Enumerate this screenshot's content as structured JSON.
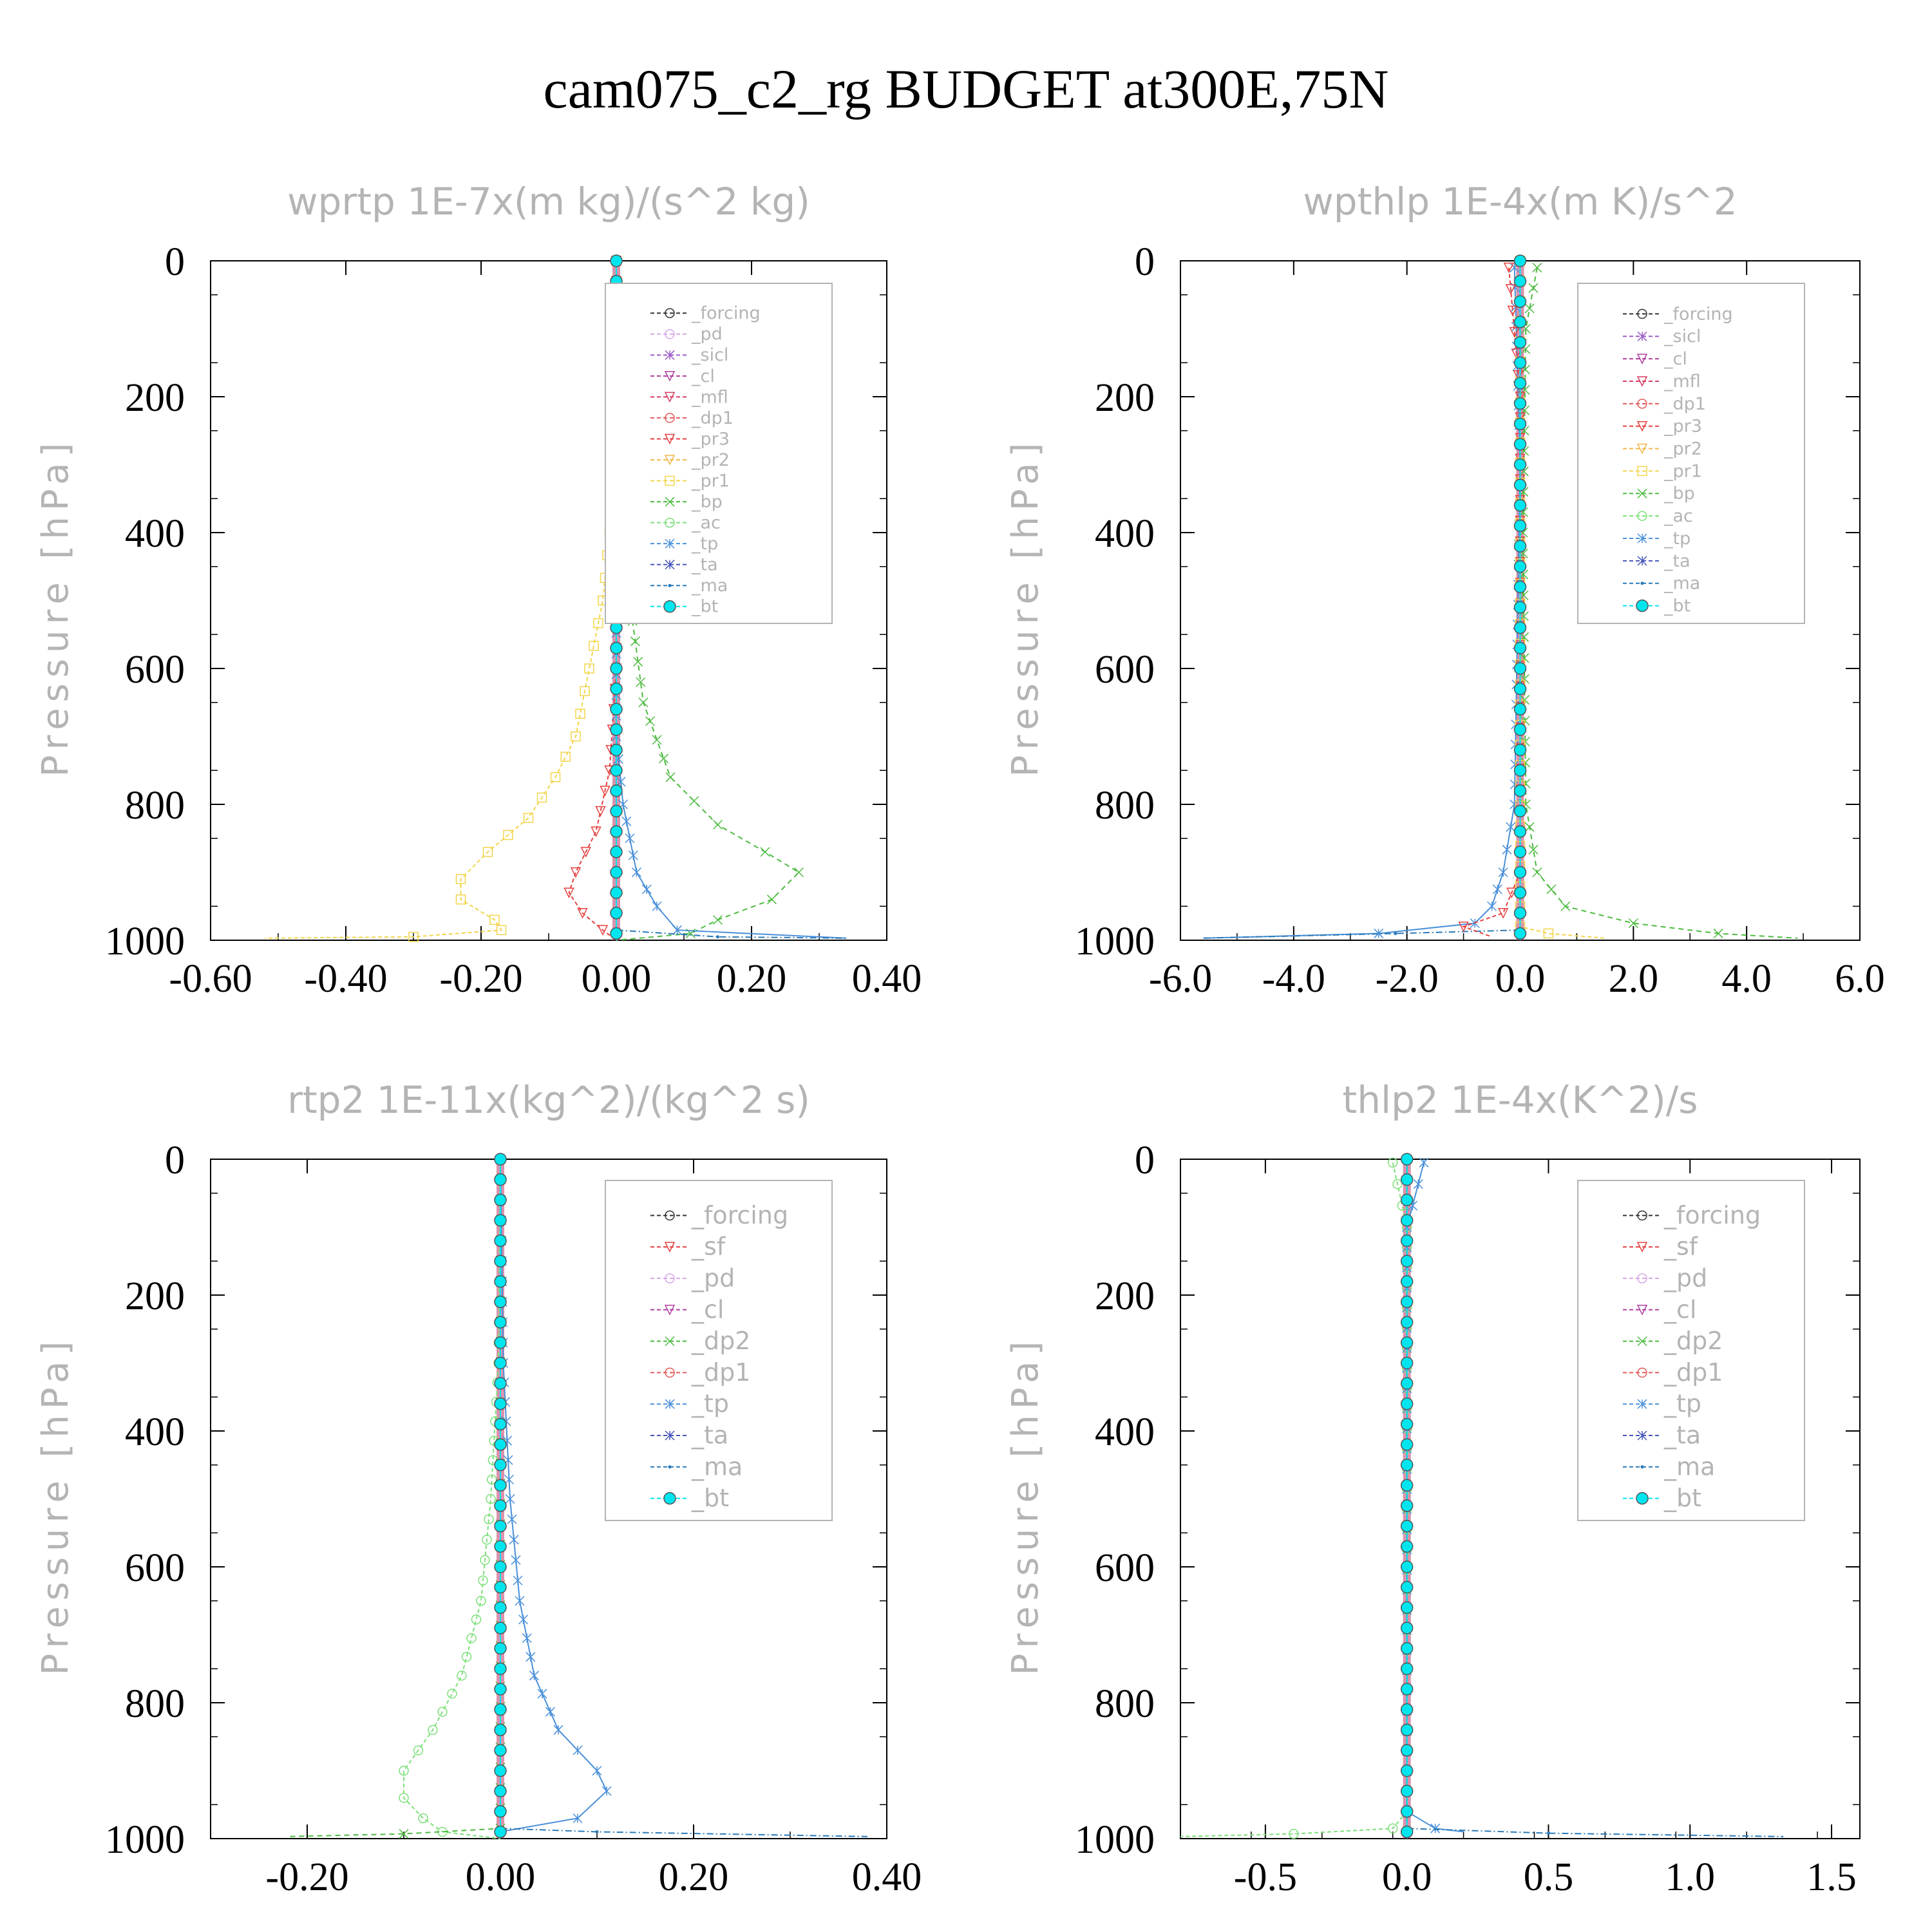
{
  "title": "cam075_c2_rg  BUDGET at300E,75N",
  "colors": {
    "forcing": "#333333",
    "pd": "#d8a8e8",
    "sicl": "#9b59c6",
    "cl": "#b03fa0",
    "mfl": "#d63d5e",
    "dp1": "#e35b5b",
    "pr3": "#e64040",
    "pr2": "#f2b84b",
    "pr1": "#f2d54b",
    "bp": "#4cbb3f",
    "ac": "#7de07a",
    "tp": "#4a90d9",
    "ta": "#4455bb",
    "ma": "#2a7ab8",
    "bt": "#00e5ee",
    "sf": "#e64040",
    "dp2": "#4cbb3f",
    "forcing_red": "#e35b5b"
  },
  "chart_data": [
    {
      "type": "line",
      "title": "wprtp  1E-7x(m kg)/(s^2 kg)",
      "ylabel": "Pressure [hPa]",
      "xlim": [
        -0.6,
        0.4
      ],
      "ylim": [
        1000,
        0
      ],
      "xticks": [
        "-0.60",
        "-0.40",
        "-0.20",
        "0.00",
        "0.20",
        "0.40"
      ],
      "xtick_values": [
        -0.6,
        -0.4,
        -0.2,
        0.0,
        0.2,
        0.4
      ],
      "yticks": [
        "0",
        "200",
        "400",
        "600",
        "800",
        "1000"
      ],
      "ytick_values": [
        0,
        200,
        400,
        600,
        800,
        1000
      ],
      "legend": [
        "_forcing",
        "_pd",
        "_sicl",
        "_cl",
        "_mfl",
        "_dp1",
        "_pr3",
        "_pr2",
        "_pr1",
        "_bp",
        "_ac",
        "_tp",
        "_ta",
        "_ma",
        "_bt"
      ],
      "series": [
        {
          "name": "_pr1",
          "color": "#f2d54b",
          "marker": "square",
          "dash": "6,4",
          "points": [
            [
              0,
              0
            ],
            [
              0,
              300
            ],
            [
              -0.01,
              400
            ],
            [
              -0.02,
              500
            ],
            [
              -0.04,
              600
            ],
            [
              -0.06,
              700
            ],
            [
              -0.09,
              760
            ],
            [
              -0.13,
              820
            ],
            [
              -0.19,
              870
            ],
            [
              -0.23,
              910
            ],
            [
              -0.23,
              940
            ],
            [
              -0.18,
              970
            ],
            [
              -0.17,
              985
            ],
            [
              -0.3,
              995
            ],
            [
              -0.52,
              997
            ]
          ]
        },
        {
          "name": "_pr3",
          "color": "#e64040",
          "marker": "tri-down",
          "dash": "6,4",
          "points": [
            [
              0,
              0
            ],
            [
              0,
              600
            ],
            [
              -0.01,
              750
            ],
            [
              -0.03,
              840
            ],
            [
              -0.06,
              900
            ],
            [
              -0.07,
              930
            ],
            [
              -0.05,
              960
            ],
            [
              -0.02,
              985
            ],
            [
              0,
              1000
            ]
          ]
        },
        {
          "name": "_bp",
          "color": "#4cbb3f",
          "marker": "x",
          "dash": "8,6",
          "points": [
            [
              0,
              0
            ],
            [
              0,
              250
            ],
            [
              0.01,
              350
            ],
            [
              0.02,
              500
            ],
            [
              0.04,
              650
            ],
            [
              0.08,
              760
            ],
            [
              0.15,
              830
            ],
            [
              0.22,
              870
            ],
            [
              0.27,
              900
            ],
            [
              0.23,
              940
            ],
            [
              0.15,
              970
            ],
            [
              0.11,
              990
            ],
            [
              0,
              1000
            ]
          ]
        },
        {
          "name": "_tp",
          "color": "#4a90d9",
          "marker": "asterisk",
          "dash": "",
          "points": [
            [
              0,
              0
            ],
            [
              0,
              700
            ],
            [
              0.01,
              800
            ],
            [
              0.02,
              850
            ],
            [
              0.03,
              900
            ],
            [
              0.06,
              950
            ],
            [
              0.09,
              985
            ],
            [
              0.34,
              997
            ]
          ]
        },
        {
          "name": "_ma",
          "color": "#2a7ab8",
          "marker": "dot",
          "dash": "10,4,2,4",
          "points": [
            [
              0,
              0
            ],
            [
              0,
              985
            ],
            [
              0.15,
              995
            ],
            [
              0.34,
              997
            ]
          ]
        },
        {
          "name": "_bt",
          "color": "#00e5ee",
          "marker": "bigdot",
          "dash": "",
          "points": [
            [
              0,
              0
            ],
            [
              0,
              1000
            ]
          ]
        }
      ]
    },
    {
      "type": "line",
      "title": "wpthlp  1E-4x(m K)/s^2",
      "ylabel": "Pressure [hPa]",
      "xlim": [
        -6.0,
        6.0
      ],
      "ylim": [
        1000,
        0
      ],
      "xticks": [
        "-6.0",
        "-4.0",
        "-2.0",
        "0.0",
        "2.0",
        "4.0",
        "6.0"
      ],
      "xtick_values": [
        -6,
        -4,
        -2,
        0,
        2,
        4,
        6
      ],
      "yticks": [
        "0",
        "200",
        "400",
        "600",
        "800",
        "1000"
      ],
      "ytick_values": [
        0,
        200,
        400,
        600,
        800,
        1000
      ],
      "legend": [
        "_forcing",
        "_sicl",
        "_cl",
        "_mfl",
        "_dp1",
        "_pr3",
        "_pr2",
        "_pr1",
        "_bp",
        "_ac",
        "_tp",
        "_ta",
        "_ma",
        "_bt"
      ],
      "series": [
        {
          "name": "_bp",
          "color": "#4cbb3f",
          "marker": "x",
          "dash": "8,6",
          "points": [
            [
              0.3,
              10
            ],
            [
              0.1,
              100
            ],
            [
              0.05,
              400
            ],
            [
              0.1,
              800
            ],
            [
              0.3,
              900
            ],
            [
              0.8,
              950
            ],
            [
              2.0,
              975
            ],
            [
              3.5,
              990
            ],
            [
              4.9,
              997
            ]
          ]
        },
        {
          "name": "_tp",
          "color": "#4a90d9",
          "marker": "asterisk",
          "dash": "",
          "points": [
            [
              -0.1,
              10
            ],
            [
              0,
              300
            ],
            [
              -0.1,
              800
            ],
            [
              -0.3,
              900
            ],
            [
              -0.5,
              950
            ],
            [
              -0.8,
              975
            ],
            [
              -2.5,
              990
            ],
            [
              -5.6,
              997
            ]
          ]
        },
        {
          "name": "_ma",
          "color": "#2a7ab8",
          "marker": "dot",
          "dash": "10,4,2,4",
          "points": [
            [
              0,
              0
            ],
            [
              0,
              985
            ],
            [
              -2.2,
              990
            ],
            [
              -5.6,
              997
            ]
          ]
        },
        {
          "name": "_pr3",
          "color": "#e64040",
          "marker": "tri-down",
          "dash": "6,4",
          "points": [
            [
              -0.2,
              10
            ],
            [
              0,
              200
            ],
            [
              0,
              900
            ],
            [
              -0.3,
              960
            ],
            [
              -1.0,
              980
            ],
            [
              -0.5,
              995
            ]
          ]
        },
        {
          "name": "_pr1",
          "color": "#f2d54b",
          "marker": "square",
          "dash": "6,4",
          "points": [
            [
              0,
              0
            ],
            [
              0,
              980
            ],
            [
              0.5,
              990
            ],
            [
              1.5,
              997
            ]
          ]
        },
        {
          "name": "_bt",
          "color": "#00e5ee",
          "marker": "bigdot",
          "dash": "",
          "points": [
            [
              0,
              0
            ],
            [
              0,
              1000
            ]
          ]
        }
      ]
    },
    {
      "type": "line",
      "title": "rtp2  1E-11x(kg^2)/(kg^2 s)",
      "ylabel": "Pressure [hPa]",
      "xlim": [
        -0.3,
        0.4
      ],
      "ylim": [
        1000,
        0
      ],
      "xticks": [
        "-0.20",
        "0.00",
        "0.20",
        "0.40"
      ],
      "xtick_values": [
        -0.2,
        0.0,
        0.2,
        0.4
      ],
      "yticks": [
        "0",
        "200",
        "400",
        "600",
        "800",
        "1000"
      ],
      "ytick_values": [
        0,
        200,
        400,
        600,
        800,
        1000
      ],
      "legend": [
        "_forcing",
        "_sf",
        "_pd",
        "_cl",
        "_dp2",
        "_dp1",
        "_tp",
        "_ta",
        "_ma",
        "_bt"
      ],
      "series": [
        {
          "name": "_dp1",
          "color": "#7de07a",
          "marker": "circle",
          "dash": "6,4",
          "points": [
            [
              0,
              0
            ],
            [
              -0.002,
              300
            ],
            [
              -0.01,
              500
            ],
            [
              -0.02,
              650
            ],
            [
              -0.04,
              760
            ],
            [
              -0.07,
              840
            ],
            [
              -0.1,
              900
            ],
            [
              -0.1,
              940
            ],
            [
              -0.08,
              970
            ],
            [
              -0.06,
              990
            ],
            [
              0,
              1000
            ]
          ]
        },
        {
          "name": "_dp2",
          "color": "#4cbb3f",
          "marker": "x",
          "dash": "8,6",
          "points": [
            [
              0,
              0
            ],
            [
              0,
              985
            ],
            [
              -0.1,
              993
            ],
            [
              -0.22,
              997
            ]
          ]
        },
        {
          "name": "_tp",
          "color": "#4a90d9",
          "marker": "asterisk",
          "dash": "",
          "points": [
            [
              0,
              0
            ],
            [
              0.003,
              300
            ],
            [
              0.01,
              500
            ],
            [
              0.02,
              650
            ],
            [
              0.035,
              760
            ],
            [
              0.06,
              840
            ],
            [
              0.1,
              900
            ],
            [
              0.11,
              930
            ],
            [
              0.08,
              970
            ],
            [
              0,
              990
            ]
          ]
        },
        {
          "name": "_ma",
          "color": "#2a7ab8",
          "marker": "dot",
          "dash": "10,4,2,4",
          "points": [
            [
              0,
              0
            ],
            [
              0,
              985
            ],
            [
              0.1,
              990
            ],
            [
              0.38,
              997
            ]
          ]
        },
        {
          "name": "_bt",
          "color": "#00e5ee",
          "marker": "bigdot",
          "dash": "",
          "points": [
            [
              0,
              0
            ],
            [
              0,
              1000
            ]
          ]
        }
      ]
    },
    {
      "type": "line",
      "title": "thlp2  1E-4x(K^2)/s",
      "ylabel": "Pressure [hPa]",
      "xlim": [
        -0.8,
        1.6
      ],
      "ylim": [
        1000,
        0
      ],
      "xticks": [
        "-0.5",
        "0.0",
        "0.5",
        "1.0",
        "1.5"
      ],
      "xtick_values": [
        -0.5,
        0.0,
        0.5,
        1.0,
        1.5
      ],
      "yticks": [
        "0",
        "200",
        "400",
        "600",
        "800",
        "1000"
      ],
      "ytick_values": [
        0,
        200,
        400,
        600,
        800,
        1000
      ],
      "legend": [
        "_forcing",
        "_sf",
        "_pd",
        "_cl",
        "_dp2",
        "_dp1",
        "_tp",
        "_ta",
        "_ma",
        "_bt"
      ],
      "series": [
        {
          "name": "_dp1",
          "color": "#7de07a",
          "marker": "circle",
          "dash": "6,4",
          "points": [
            [
              -0.05,
              5
            ],
            [
              0,
              100
            ],
            [
              0,
              960
            ],
            [
              -0.05,
              985
            ],
            [
              -0.4,
              993
            ],
            [
              -0.8,
              997
            ]
          ]
        },
        {
          "name": "_tp",
          "color": "#4a90d9",
          "marker": "asterisk",
          "dash": "",
          "points": [
            [
              0.06,
              5
            ],
            [
              0,
              100
            ],
            [
              0,
              960
            ],
            [
              0.1,
              985
            ],
            [
              0.2,
              990
            ]
          ]
        },
        {
          "name": "_ma",
          "color": "#2a7ab8",
          "marker": "dot",
          "dash": "10,4,2,4",
          "points": [
            [
              0,
              0
            ],
            [
              0,
              985
            ],
            [
              0.5,
              992
            ],
            [
              1.33,
              997
            ]
          ]
        },
        {
          "name": "_bt",
          "color": "#00e5ee",
          "marker": "bigdot",
          "dash": "",
          "points": [
            [
              0,
              0
            ],
            [
              0,
              1000
            ]
          ]
        }
      ]
    }
  ]
}
